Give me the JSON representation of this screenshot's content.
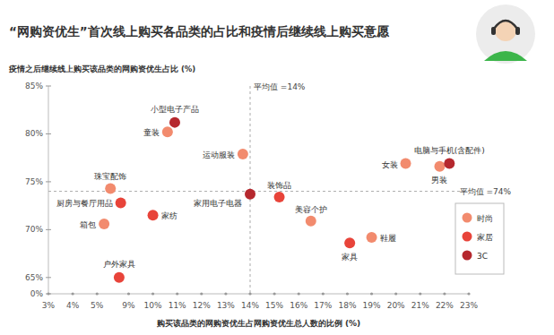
{
  "chart_data": {
    "type": "scatter",
    "title": "“网购资优生”首次线上购买各品类的占比和疫情后继续线上购买意愿",
    "y_label": "疫情之后继续线上购买该品类的网购资优生占比 (%)",
    "x_label": "购买该品类的网购资优生占网购资优生总人数的比例 (%)",
    "xlim": [
      3,
      23
    ],
    "ylim": [
      0,
      85
    ],
    "xticks": [
      {
        "value": 3,
        "label": "3%"
      },
      {
        "value": 4,
        "label": "4%"
      },
      {
        "value": 5,
        "label": "5%"
      },
      {
        "value": 9,
        "label": "9%"
      },
      {
        "value": 10,
        "label": "10%"
      },
      {
        "value": 11,
        "label": "11%"
      },
      {
        "value": 12,
        "label": "12%"
      },
      {
        "value": 13,
        "label": "13%"
      },
      {
        "value": 14,
        "label": "14%"
      },
      {
        "value": 15,
        "label": "15%"
      },
      {
        "value": 16,
        "label": "16%"
      },
      {
        "value": 17,
        "label": "17%"
      },
      {
        "value": 18,
        "label": "18%"
      },
      {
        "value": 19,
        "label": "19%"
      },
      {
        "value": 20,
        "label": "20%"
      },
      {
        "value": 21,
        "label": "21%"
      },
      {
        "value": 22,
        "label": "22%"
      },
      {
        "value": 23,
        "label": "23%"
      }
    ],
    "yticks": [
      {
        "value": 0,
        "label": "0%"
      },
      {
        "value": 65,
        "label": "65%"
      },
      {
        "value": 70,
        "label": "70%"
      },
      {
        "value": 75,
        "label": "75%"
      },
      {
        "value": 80,
        "label": "80%"
      },
      {
        "value": 85,
        "label": "85%"
      }
    ],
    "grid": false,
    "legend": "lower right",
    "marker": "circle",
    "annotations": [
      {
        "text": "平均值 =14%",
        "x": 14
      },
      {
        "text": "平均值 =74%",
        "y": 74
      }
    ],
    "series": [
      {
        "name": "时尚",
        "color": "#f28b6e",
        "labels": [
          "童装",
          "运动服装",
          "珠宝配饰",
          "箱包",
          "美容个护",
          "鞋履",
          "女装",
          "男装"
        ],
        "x": [
          10.6,
          13.7,
          6.7,
          5.9,
          16.5,
          19.0,
          20.4,
          21.8
        ],
        "values": [
          80.2,
          77.9,
          74.3,
          70.6,
          70.9,
          69.2,
          76.9,
          76.6
        ]
      },
      {
        "name": "家居",
        "color": "#e8443a",
        "labels": [
          "厨房与餐厅用品",
          "家纺",
          "户外家具",
          "装饰品",
          "家具"
        ],
        "x": [
          8.0,
          10.0,
          7.8,
          15.2,
          18.1
        ],
        "values": [
          72.8,
          71.5,
          65.0,
          73.4,
          68.6
        ]
      },
      {
        "name": "3C",
        "color": "#b5282e",
        "labels": [
          "小型电子产品",
          "家用电子电器",
          "电脑与手机(含配件)"
        ],
        "x": [
          10.9,
          14.0,
          22.2
        ],
        "values": [
          81.2,
          73.7,
          76.9
        ]
      }
    ]
  }
}
